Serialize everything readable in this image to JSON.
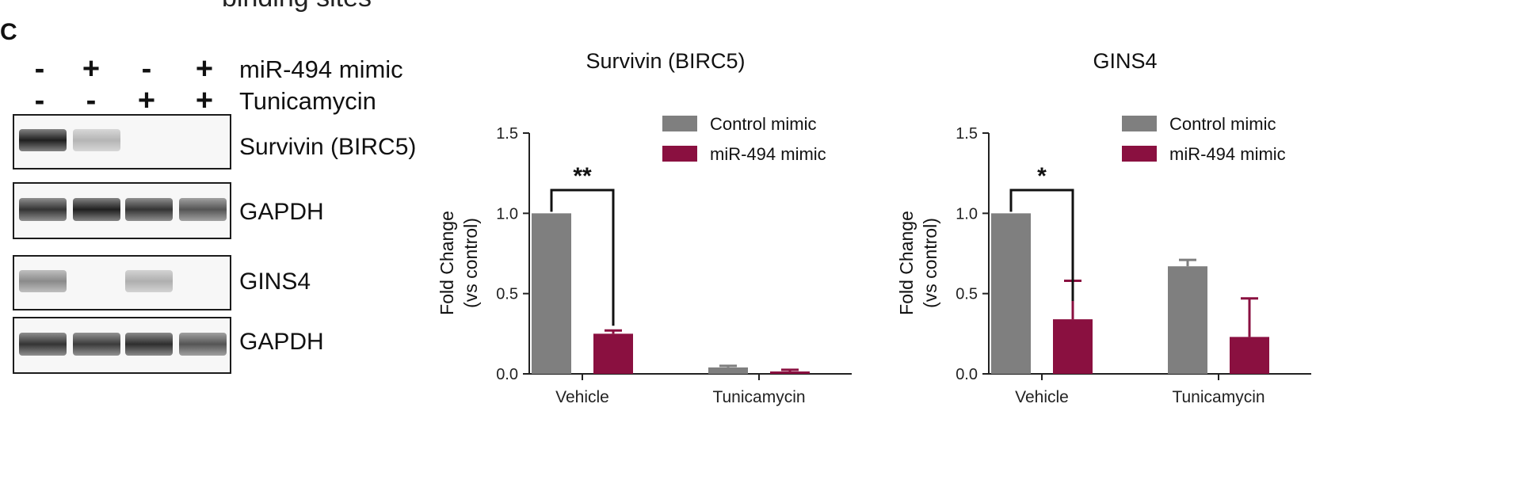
{
  "figure": {
    "top_text": "binding sites",
    "panel_label": "C"
  },
  "western_blot": {
    "treatment_rows": [
      {
        "label": "miR-494 mimic",
        "signs": [
          "-",
          "+",
          "-",
          "+"
        ]
      },
      {
        "label": "Tunicamycin",
        "signs": [
          "-",
          "-",
          "+",
          "+"
        ]
      }
    ],
    "blots": [
      {
        "label": "Survivin (BIRC5)",
        "band_intensity": [
          0.95,
          0.25,
          0.0,
          0.0
        ]
      },
      {
        "label": "GAPDH",
        "band_intensity": [
          0.85,
          0.95,
          0.85,
          0.7
        ]
      },
      {
        "label": "GINS4",
        "band_intensity": [
          0.45,
          0.0,
          0.28,
          0.0
        ]
      },
      {
        "label": "GAPDH",
        "band_intensity": [
          0.85,
          0.82,
          0.88,
          0.7
        ]
      }
    ]
  },
  "chart_data": [
    {
      "type": "bar",
      "title": "Survivin (BIRC5)",
      "ylabel_lines": [
        "Fold Change",
        "(vs control)"
      ],
      "ylim": [
        0,
        1.5
      ],
      "yticks": [
        "0.0",
        "0.5",
        "1.0",
        "1.5"
      ],
      "categories": [
        "Vehicle",
        "Tunicamycin"
      ],
      "series": [
        {
          "name": "Control mimic",
          "color": "#7f7f7f",
          "values": [
            1.0,
            0.04
          ],
          "error": [
            0.0,
            0.01
          ]
        },
        {
          "name": "miR-494 mimic",
          "color": "#8a1040",
          "values": [
            0.25,
            0.015
          ],
          "error": [
            0.02,
            0.01
          ]
        }
      ],
      "legend_position": "top-right",
      "significance": {
        "category": "Vehicle",
        "label": "**"
      }
    },
    {
      "type": "bar",
      "title": "GINS4",
      "ylabel_lines": [
        "Fold Change",
        "(vs control)"
      ],
      "ylim": [
        0,
        1.5
      ],
      "yticks": [
        "0.0",
        "0.5",
        "1.0",
        "1.5"
      ],
      "categories": [
        "Vehicle",
        "Tunicamycin"
      ],
      "series": [
        {
          "name": "Control mimic",
          "color": "#7f7f7f",
          "values": [
            1.0,
            0.67
          ],
          "error": [
            0.0,
            0.04
          ]
        },
        {
          "name": "miR-494 mimic",
          "color": "#8a1040",
          "values": [
            0.34,
            0.23
          ],
          "error": [
            0.24,
            0.24
          ]
        }
      ],
      "legend_position": "top-right",
      "significance": {
        "category": "Vehicle",
        "label": "*"
      }
    }
  ]
}
